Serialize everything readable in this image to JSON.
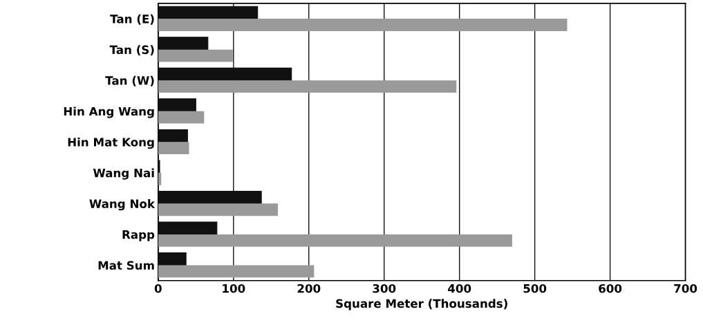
{
  "chart_data": {
    "type": "bar",
    "orientation": "horizontal",
    "xlabel": "Square Meter (Thousands)",
    "categories": [
      "Tan (E)",
      "Tan (S)",
      "Tan (W)",
      "Hin Ang Wang",
      "Hin Mat Kong",
      "Wang Nai",
      "Wang Nok",
      "Rapp",
      "Mat Sum"
    ],
    "series": [
      {
        "color": "#111111",
        "values": [
          132,
          66,
          177,
          50,
          39,
          2,
          137,
          78,
          37
        ]
      },
      {
        "color": "#9a9a9a",
        "values": [
          543,
          99,
          396,
          61,
          41,
          4,
          159,
          470,
          207
        ]
      }
    ],
    "xlim": [
      0,
      700
    ],
    "xticks": [
      0,
      100,
      200,
      300,
      400,
      500,
      600,
      700
    ],
    "grid": "x"
  }
}
